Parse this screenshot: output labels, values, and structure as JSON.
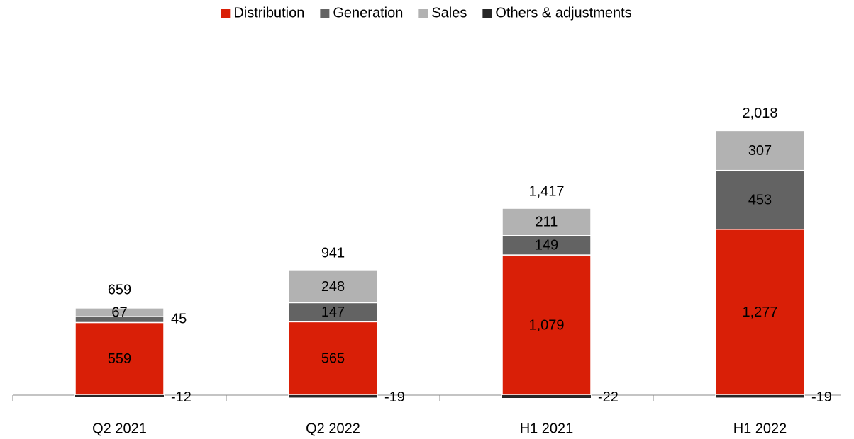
{
  "chart_data": {
    "type": "bar",
    "stacked": true,
    "categories": [
      "Q2 2021",
      "Q2 2022",
      "H1 2021",
      "H1 2022"
    ],
    "series": [
      {
        "name": "Distribution",
        "color": "#d91f07",
        "values": [
          559,
          565,
          1079,
          1277
        ],
        "value_labels": [
          "559",
          "565",
          "1,079",
          "1,277"
        ]
      },
      {
        "name": "Generation",
        "color": "#636363",
        "values": [
          45,
          147,
          149,
          453
        ]
      },
      {
        "name": "Sales",
        "color": "#b2b2b2",
        "values": [
          67,
          248,
          211,
          307
        ]
      },
      {
        "name": "Others & adjustments",
        "color": "#262626",
        "values": [
          -12,
          -19,
          -22,
          -19
        ]
      }
    ],
    "totals": [
      659,
      941,
      1417,
      2018
    ],
    "total_labels": [
      "659",
      "941",
      "1,417",
      "2,018"
    ],
    "ylim": [
      -100,
      2200
    ]
  }
}
